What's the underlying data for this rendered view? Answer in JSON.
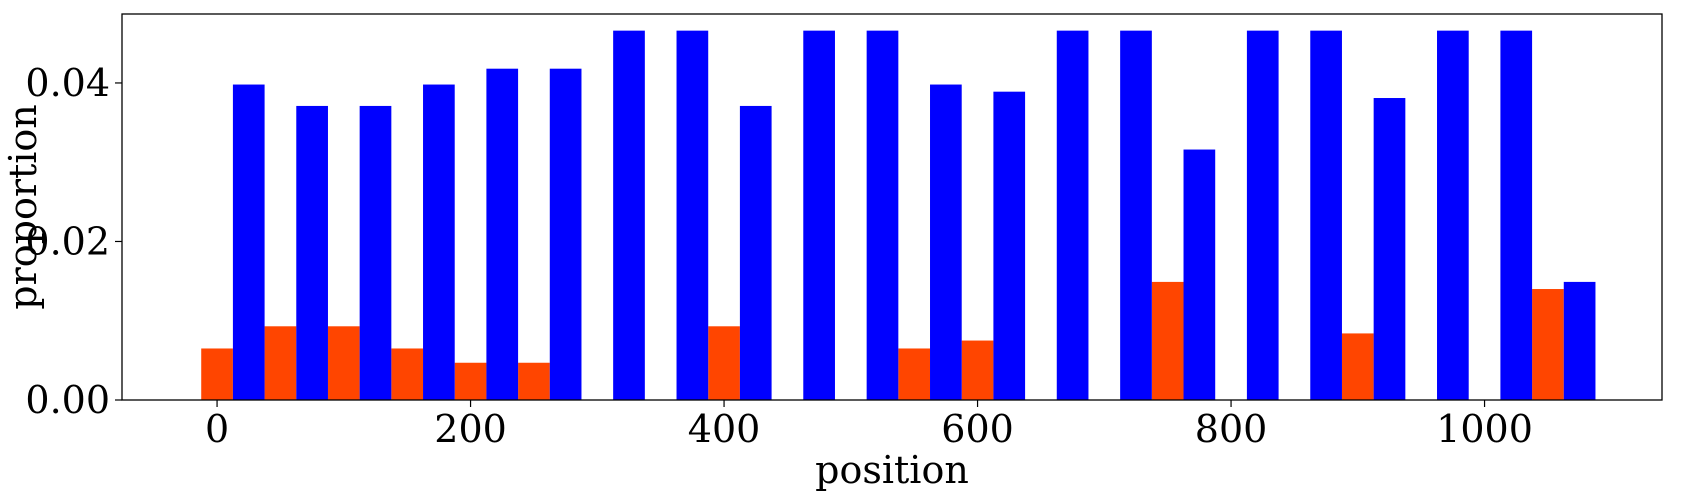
{
  "chart_data": {
    "type": "bar",
    "title": "",
    "xlabel": "position",
    "ylabel": "proportion",
    "xlim": [
      -75,
      1140
    ],
    "ylim": [
      0,
      0.0487
    ],
    "x_ticks": [
      0,
      200,
      400,
      600,
      800,
      1000
    ],
    "x_tick_labels": [
      "0",
      "200",
      "400",
      "600",
      "800",
      "1000"
    ],
    "y_ticks": [
      0,
      0.02,
      0.04
    ],
    "y_tick_labels": [
      "0.00",
      "0.02",
      "0.04"
    ],
    "grid": false,
    "bar_width": 25,
    "series": [
      {
        "color": "#ff4500",
        "x": [
          0,
          50,
          100,
          150,
          200,
          250,
          300,
          350,
          400,
          450,
          500,
          550,
          600,
          650,
          700,
          750,
          800,
          850,
          900,
          950,
          1000,
          1050
        ],
        "values": [
          0.0065,
          0.0093,
          0.0093,
          0.0065,
          0.0047,
          0.0047,
          0,
          0,
          0.0093,
          0,
          0,
          0.0065,
          0.0075,
          0,
          0,
          0.0149,
          0,
          0,
          0.0084,
          0,
          0,
          0.014
        ]
      },
      {
        "color": "#0000ff",
        "x": [
          25,
          75,
          125,
          175,
          225,
          275,
          325,
          375,
          425,
          475,
          525,
          575,
          625,
          675,
          725,
          775,
          825,
          875,
          925,
          975,
          1025,
          1075
        ],
        "values": [
          0.0398,
          0.0371,
          0.0371,
          0.0398,
          0.0418,
          0.0418,
          0.0466,
          0.0466,
          0.0371,
          0.0466,
          0.0466,
          0.0398,
          0.0389,
          0.0466,
          0.0466,
          0.0316,
          0.0466,
          0.0466,
          0.0381,
          0.0466,
          0.0466,
          0.0149
        ]
      }
    ]
  }
}
